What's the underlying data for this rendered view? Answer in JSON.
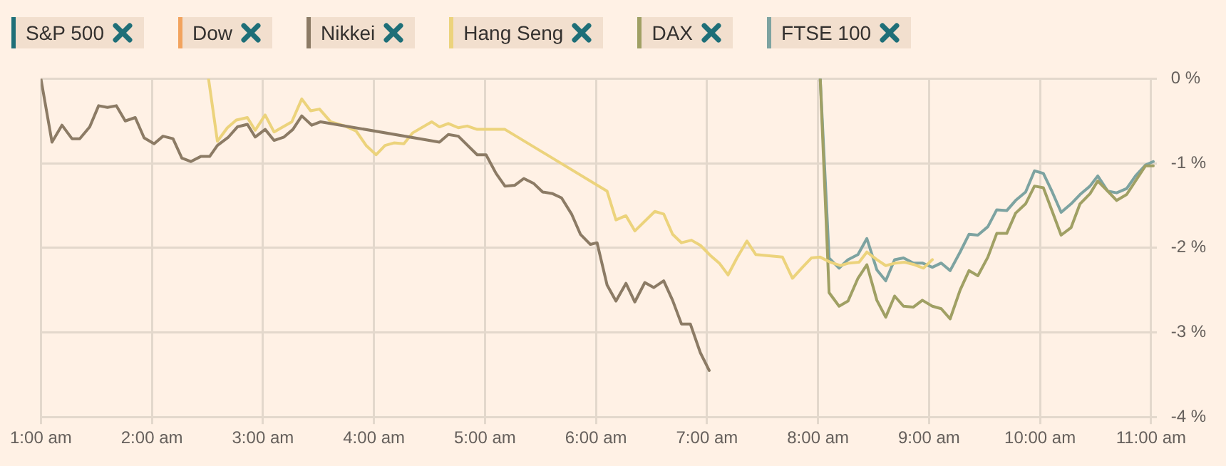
{
  "chart_data": {
    "type": "line",
    "legend": "top left",
    "grid": true,
    "marker": "none",
    "line_style": "solid",
    "xlim": [
      1,
      11.05
    ],
    "ylim": [
      -4,
      0
    ],
    "xticks": [
      {
        "value": 1,
        "label": "1:00 am"
      },
      {
        "value": 2,
        "label": "2:00 am"
      },
      {
        "value": 3,
        "label": "3:00 am"
      },
      {
        "value": 4,
        "label": "4:00 am"
      },
      {
        "value": 5,
        "label": "5:00 am"
      },
      {
        "value": 6,
        "label": "6:00 am"
      },
      {
        "value": 7,
        "label": "7:00 am"
      },
      {
        "value": 8,
        "label": "8:00 am"
      },
      {
        "value": 9,
        "label": "9:00 am"
      },
      {
        "value": 10,
        "label": "10:00 am"
      },
      {
        "value": 11,
        "label": "11:00 am"
      }
    ],
    "yticks": [
      {
        "value": 0,
        "label": "0 %"
      },
      {
        "value": -1,
        "label": "-1 %"
      },
      {
        "value": -2,
        "label": "-2 %"
      },
      {
        "value": -3,
        "label": "-3 %"
      },
      {
        "value": -4,
        "label": "-4 %"
      }
    ],
    "series": [
      {
        "name": "S&P 500",
        "color": "#1e6f78"
      },
      {
        "name": "Dow",
        "color": "#f2a35e"
      },
      {
        "name": "Nikkei",
        "color": "#8c7b65",
        "x": [
          1.0,
          1.1,
          1.19,
          1.28,
          1.35,
          1.44,
          1.52,
          1.6,
          1.68,
          1.76,
          1.85,
          1.93,
          2.02,
          2.1,
          2.19,
          2.27,
          2.35,
          2.44,
          2.52,
          2.59,
          2.69,
          2.77,
          2.86,
          2.93,
          3.02,
          3.1,
          3.19,
          3.27,
          3.35,
          3.44,
          3.52,
          4.59,
          4.67,
          4.76,
          4.93,
          5.01,
          5.1,
          5.18,
          5.27,
          5.35,
          5.44,
          5.52,
          5.61,
          5.69,
          5.78,
          5.86,
          5.95,
          6.01,
          6.1,
          6.18,
          6.27,
          6.35,
          6.44,
          6.52,
          6.61,
          6.69,
          6.77,
          6.85,
          6.94,
          7.02
        ],
        "values": [
          0,
          -0.75,
          -0.55,
          -0.71,
          -0.71,
          -0.57,
          -0.32,
          -0.34,
          -0.32,
          -0.5,
          -0.46,
          -0.7,
          -0.77,
          -0.68,
          -0.71,
          -0.94,
          -0.98,
          -0.92,
          -0.92,
          -0.79,
          -0.69,
          -0.57,
          -0.54,
          -0.69,
          -0.6,
          -0.73,
          -0.69,
          -0.6,
          -0.44,
          -0.55,
          -0.51,
          -0.75,
          -0.66,
          -0.68,
          -0.9,
          -0.9,
          -1.12,
          -1.27,
          -1.26,
          -1.18,
          -1.24,
          -1.34,
          -1.36,
          -1.41,
          -1.6,
          -1.84,
          -1.96,
          -1.94,
          -2.44,
          -2.63,
          -2.42,
          -2.64,
          -2.41,
          -2.47,
          -2.39,
          -2.62,
          -2.9,
          -2.9,
          -3.24,
          -3.45
        ]
      },
      {
        "name": "Hang Seng",
        "color": "#ecd37c",
        "x": [
          2.51,
          2.59,
          2.68,
          2.76,
          2.86,
          2.93,
          3.02,
          3.1,
          3.26,
          3.35,
          3.43,
          3.51,
          3.61,
          3.74,
          3.84,
          3.93,
          4.02,
          4.1,
          4.18,
          4.27,
          4.35,
          4.52,
          4.59,
          4.67,
          4.76,
          4.84,
          4.93,
          5.18,
          6.1,
          6.18,
          6.27,
          6.35,
          6.53,
          6.61,
          6.69,
          6.77,
          6.86,
          6.94,
          7.03,
          7.11,
          7.19,
          7.27,
          7.36,
          7.44,
          7.68,
          7.77,
          7.86,
          7.94,
          8.02,
          8.11,
          8.2,
          8.28,
          8.37,
          8.44,
          8.53,
          8.61,
          8.7,
          8.78,
          8.87,
          8.95,
          9.03
        ],
        "values": [
          0,
          -0.74,
          -0.58,
          -0.49,
          -0.46,
          -0.61,
          -0.43,
          -0.63,
          -0.51,
          -0.24,
          -0.38,
          -0.36,
          -0.51,
          -0.56,
          -0.62,
          -0.79,
          -0.9,
          -0.79,
          -0.76,
          -0.77,
          -0.64,
          -0.51,
          -0.57,
          -0.53,
          -0.58,
          -0.56,
          -0.6,
          -0.6,
          -1.33,
          -1.67,
          -1.62,
          -1.8,
          -1.57,
          -1.6,
          -1.84,
          -1.94,
          -1.91,
          -1.97,
          -2.09,
          -2.18,
          -2.32,
          -2.12,
          -1.92,
          -2.08,
          -2.11,
          -2.36,
          -2.23,
          -2.12,
          -2.11,
          -2.17,
          -2.21,
          -2.18,
          -2.17,
          -2.05,
          -2.14,
          -2.21,
          -2.18,
          -2.17,
          -2.2,
          -2.24,
          -2.14
        ]
      },
      {
        "name": "DAX",
        "color": "#a0a064",
        "x": [
          8.02,
          8.1,
          8.19,
          8.27,
          8.36,
          8.44,
          8.53,
          8.61,
          8.69,
          8.77,
          8.86,
          8.94,
          9.03,
          9.11,
          9.19,
          9.28,
          9.36,
          9.44,
          9.53,
          9.61,
          9.7,
          9.78,
          9.87,
          9.95,
          10.03,
          10.11,
          10.19,
          10.28,
          10.36,
          10.45,
          10.52,
          10.61,
          10.69,
          10.78,
          10.86,
          10.95,
          11.02
        ],
        "values": [
          0,
          -2.53,
          -2.69,
          -2.63,
          -2.36,
          -2.2,
          -2.62,
          -2.82,
          -2.57,
          -2.69,
          -2.7,
          -2.62,
          -2.69,
          -2.72,
          -2.84,
          -2.5,
          -2.27,
          -2.33,
          -2.11,
          -1.83,
          -1.83,
          -1.59,
          -1.48,
          -1.27,
          -1.29,
          -1.57,
          -1.85,
          -1.76,
          -1.48,
          -1.36,
          -1.21,
          -1.33,
          -1.44,
          -1.37,
          -1.21,
          -1.03,
          -1.03
        ]
      },
      {
        "name": "FTSE 100",
        "color": "#7da3a1",
        "x": [
          8.02,
          8.1,
          8.19,
          8.27,
          8.36,
          8.44,
          8.53,
          8.61,
          8.69,
          8.77,
          8.86,
          8.94,
          9.03,
          9.11,
          9.19,
          9.28,
          9.36,
          9.44,
          9.53,
          9.61,
          9.7,
          9.78,
          9.87,
          9.95,
          10.03,
          10.11,
          10.19,
          10.28,
          10.36,
          10.45,
          10.52,
          10.61,
          10.69,
          10.78,
          10.86,
          10.95,
          11.02
        ],
        "values": [
          0,
          -2.12,
          -2.24,
          -2.14,
          -2.08,
          -1.89,
          -2.26,
          -2.39,
          -2.14,
          -2.12,
          -2.18,
          -2.18,
          -2.23,
          -2.18,
          -2.27,
          -2.05,
          -1.84,
          -1.85,
          -1.75,
          -1.55,
          -1.56,
          -1.44,
          -1.34,
          -1.09,
          -1.12,
          -1.34,
          -1.58,
          -1.48,
          -1.37,
          -1.27,
          -1.15,
          -1.33,
          -1.35,
          -1.3,
          -1.15,
          -1.02,
          -0.98
        ]
      }
    ]
  }
}
